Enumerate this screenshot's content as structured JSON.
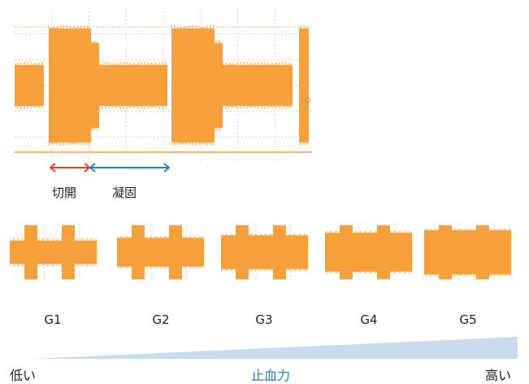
{
  "colors": {
    "waveform": "#f5a03a",
    "grid": "#c8c8c8",
    "cut_arrow": "#e8401c",
    "coag_arrow": "#1f7fcf",
    "wedge": "#c9dcee",
    "strength_label": "#1f7fcf"
  },
  "main": {
    "cut_label": "切開",
    "coag_label": "凝固"
  },
  "modes": [
    {
      "label": "G1",
      "coag_amp": 0.45,
      "cut_amp": 0.95
    },
    {
      "label": "G2",
      "coag_amp": 0.55,
      "cut_amp": 0.95
    },
    {
      "label": "G3",
      "coag_amp": 0.65,
      "cut_amp": 0.95
    },
    {
      "label": "G4",
      "coag_amp": 0.75,
      "cut_amp": 0.95
    },
    {
      "label": "G5",
      "coag_amp": 0.85,
      "cut_amp": 0.95
    }
  ],
  "strength": {
    "low": "低い",
    "axis": "止血力",
    "high": "高い"
  }
}
